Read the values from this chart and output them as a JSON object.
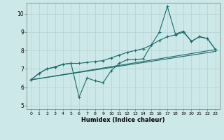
{
  "xlabel": "Humidex (Indice chaleur)",
  "xlim": [
    -0.5,
    23.5
  ],
  "ylim": [
    4.8,
    10.6
  ],
  "yticks": [
    5,
    6,
    7,
    8,
    9,
    10
  ],
  "xticks": [
    0,
    1,
    2,
    3,
    4,
    5,
    6,
    7,
    8,
    9,
    10,
    11,
    12,
    13,
    14,
    15,
    16,
    17,
    18,
    19,
    20,
    21,
    22,
    23
  ],
  "bg_color": "#cce8e8",
  "grid_color": "#b8d4d4",
  "line_color": "#1a6b6b",
  "line1_x": [
    0,
    1,
    2,
    3,
    4,
    5,
    6,
    7,
    8,
    9,
    10,
    11,
    12,
    13,
    14,
    15,
    16,
    17,
    18,
    19,
    20,
    21,
    22,
    23
  ],
  "line1_y": [
    6.4,
    6.75,
    7.0,
    7.1,
    7.25,
    7.3,
    5.45,
    6.5,
    6.35,
    6.25,
    6.9,
    7.3,
    7.5,
    7.5,
    7.55,
    8.3,
    9.0,
    10.4,
    8.9,
    9.05,
    8.5,
    8.75,
    8.65,
    8.05
  ],
  "line2_x": [
    0,
    1,
    2,
    3,
    4,
    5,
    6,
    7,
    8,
    9,
    10,
    11,
    12,
    13,
    14,
    15,
    16,
    17,
    18,
    19,
    20,
    21,
    22,
    23
  ],
  "line2_y": [
    6.4,
    6.75,
    7.0,
    7.1,
    7.25,
    7.3,
    7.3,
    7.35,
    7.4,
    7.45,
    7.6,
    7.75,
    7.9,
    8.0,
    8.1,
    8.3,
    8.55,
    8.75,
    8.85,
    9.0,
    8.5,
    8.75,
    8.65,
    8.05
  ],
  "line3_x": [
    0,
    23
  ],
  "line3_y": [
    6.4,
    8.05
  ],
  "line4_x": [
    0,
    23
  ],
  "line4_y": [
    6.4,
    7.95
  ]
}
